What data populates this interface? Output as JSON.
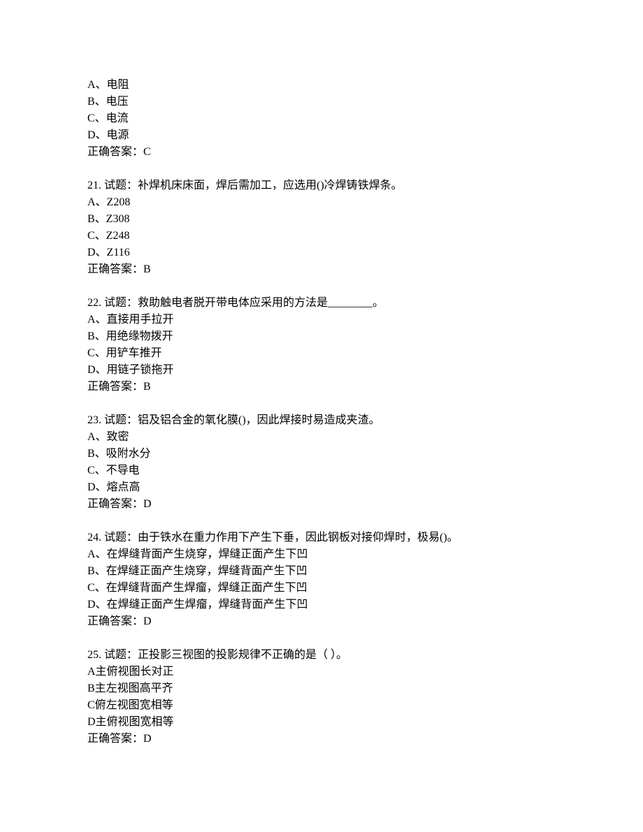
{
  "q20_partial": {
    "options": [
      "A、电阻",
      "B、电压",
      "C、电流",
      "D、电源"
    ],
    "answer": "正确答案：C"
  },
  "q21": {
    "title": "21. 试题：补焊机床床面，焊后需加工，应选用()冷焊铸铁焊条。",
    "options": [
      "A、Z208",
      "B、Z308",
      "C、Z248",
      "D、Z116"
    ],
    "answer": "正确答案：B"
  },
  "q22": {
    "title": "22. 试题：救助触电者脱开带电体应采用的方法是________。",
    "options": [
      "A、直接用手拉开",
      "B、用绝缘物拨开",
      "C、用铲车推开",
      "D、用链子锁拖开"
    ],
    "answer": "正确答案：B"
  },
  "q23": {
    "title": "23. 试题：铝及铝合金的氧化膜()，因此焊接时易造成夹渣。",
    "options": [
      "A、致密",
      "B、吸附水分",
      "C、不导电",
      "D、熔点高"
    ],
    "answer": "正确答案：D"
  },
  "q24": {
    "title": "24. 试题：由于铁水在重力作用下产生下垂，因此钢板对接仰焊时，极易()。",
    "options": [
      "A、在焊缝背面产生烧穿，焊缝正面产生下凹",
      "B、在焊缝正面产生烧穿，焊缝背面产生下凹",
      "C、在焊缝背面产生焊瘤，焊缝正面产生下凹",
      "D、在焊缝正面产生焊瘤，焊缝背面产生下凹"
    ],
    "answer": "正确答案：D"
  },
  "q25": {
    "title": "25. 试题：正投影三视图的投影规律不正确的是（ ）。",
    "options": [
      "A主俯视图长对正",
      "B主左视图高平齐",
      "C俯左视图宽相等",
      "D主俯视图宽相等"
    ],
    "answer": "正确答案：D"
  }
}
